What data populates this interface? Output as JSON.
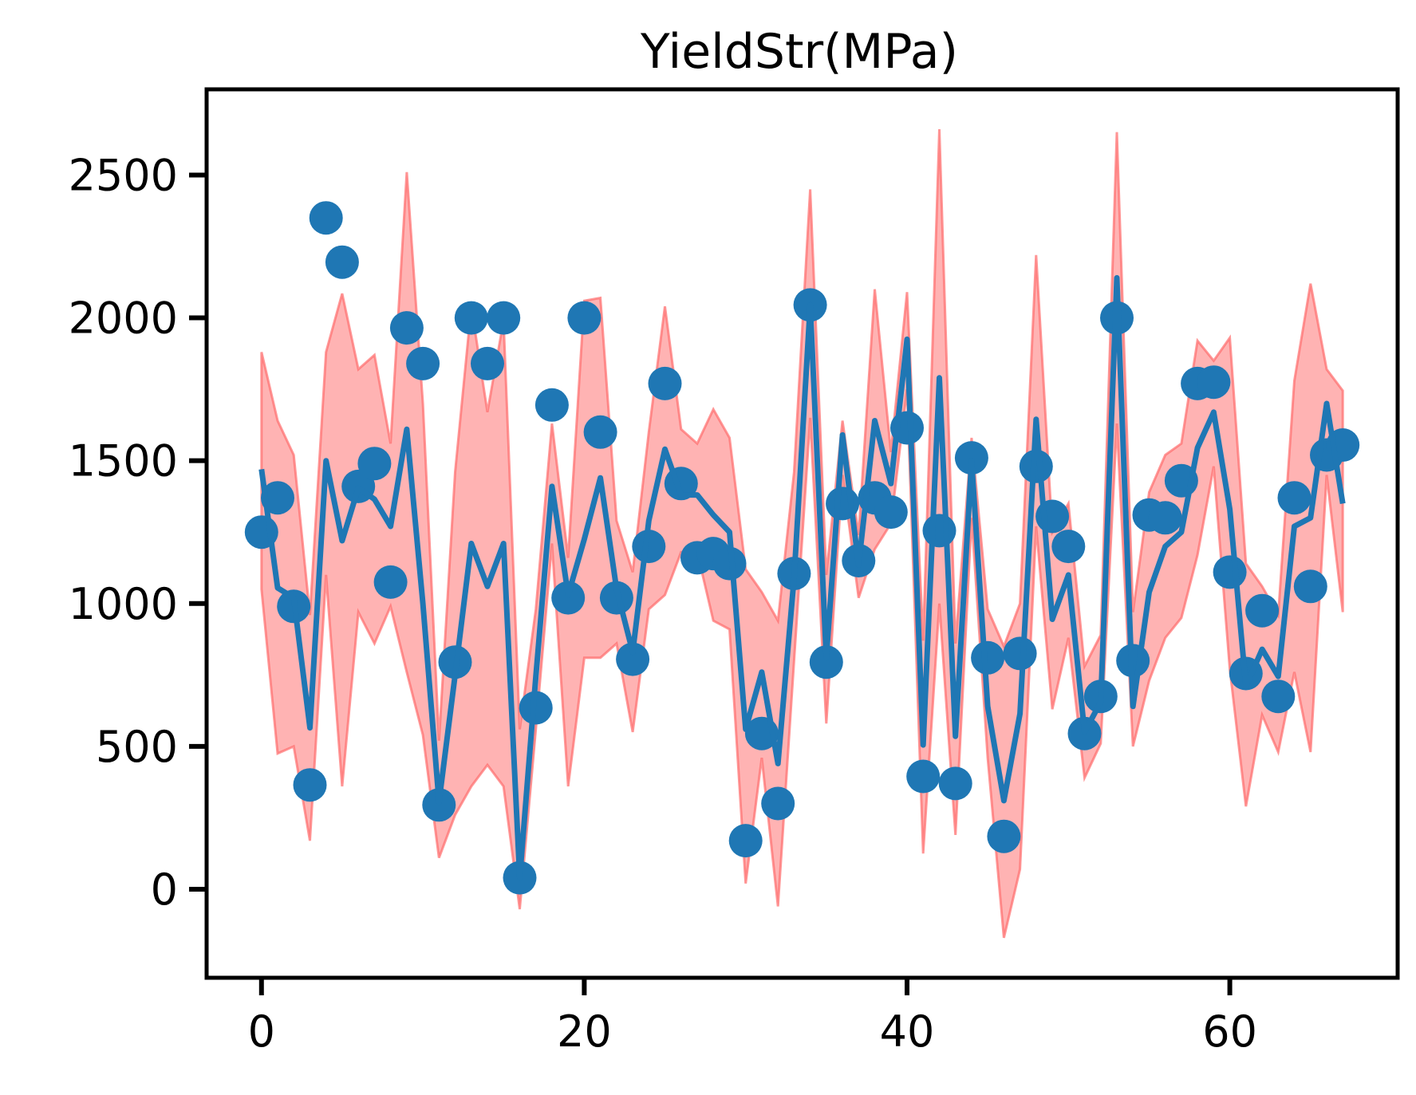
{
  "chart_data": {
    "type": "scatter",
    "title": "YieldStr(MPa)",
    "xlabel": "",
    "ylabel": "",
    "xlim": [
      -3.4,
      70.4
    ],
    "ylim": [
      -310,
      2800
    ],
    "x_ticks": [
      0,
      20,
      40,
      60
    ],
    "y_ticks": [
      0,
      500,
      1000,
      1500,
      2000,
      2500
    ],
    "grid": false,
    "legend": "none",
    "colors": {
      "points": "#1f77b4",
      "line": "#1f77b4",
      "band_fill": "#ff8080",
      "band_edge": "#ff6b6b",
      "axes": "#000000"
    },
    "series": [
      {
        "kind": "points",
        "values": [
          1250,
          1370,
          990,
          365,
          2350,
          2195,
          1410,
          1490,
          1075,
          1965,
          1840,
          295,
          795,
          2000,
          1840,
          2000,
          40,
          635,
          1695,
          1020,
          2000,
          1600,
          1020,
          805,
          1200,
          1770,
          1420,
          1160,
          1175,
          1140,
          170,
          545,
          300,
          1105,
          2045,
          795,
          1350,
          1150,
          1370,
          1320,
          1615,
          395,
          1255,
          370,
          1510,
          810,
          185,
          825,
          1480,
          1305,
          1200,
          545,
          675,
          2000,
          800,
          1310,
          1300,
          1430,
          1770,
          1775,
          1110,
          755,
          975,
          675,
          1370,
          1060,
          1520,
          1555
        ]
      },
      {
        "kind": "line",
        "values": [
          1470,
          1055,
          1020,
          565,
          1500,
          1220,
          1405,
          1365,
          1270,
          1610,
          1000,
          305,
          750,
          1210,
          1060,
          1210,
          40,
          745,
          1410,
          1030,
          1225,
          1440,
          1050,
          830,
          1290,
          1540,
          1380,
          1380,
          1310,
          1250,
          560,
          760,
          440,
          1090,
          2045,
          810,
          1590,
          1135,
          1640,
          1420,
          1925,
          505,
          1790,
          535,
          1500,
          640,
          310,
          615,
          1645,
          945,
          1100,
          550,
          655,
          2140,
          640,
          1040,
          1200,
          1250,
          1545,
          1670,
          1330,
          710,
          840,
          745,
          1270,
          1300,
          1700,
          1350
        ]
      },
      {
        "kind": "band",
        "upper": [
          1880,
          1640,
          1520,
          960,
          1880,
          2085,
          1820,
          1870,
          1560,
          2510,
          1700,
          520,
          1460,
          2040,
          1670,
          1990,
          560,
          980,
          1630,
          1160,
          2060,
          2070,
          1290,
          1110,
          1600,
          2040,
          1610,
          1560,
          1680,
          1580,
          1120,
          1040,
          940,
          1460,
          2450,
          1100,
          1640,
          1240,
          2100,
          1530,
          2090,
          870,
          2660,
          860,
          1580,
          980,
          850,
          1000,
          2220,
          1250,
          1350,
          780,
          890,
          2650,
          970,
          1390,
          1520,
          1560,
          1920,
          1850,
          1930,
          1140,
          1060,
          960,
          1780,
          2120,
          1820,
          1745
        ]
      },
      {
        "kind": "band",
        "lower": [
          1050,
          475,
          500,
          170,
          1100,
          360,
          970,
          860,
          990,
          760,
          540,
          110,
          260,
          360,
          435,
          360,
          -70,
          560,
          1210,
          360,
          810,
          810,
          860,
          550,
          980,
          1030,
          1180,
          1180,
          940,
          910,
          20,
          460,
          -60,
          800,
          1650,
          580,
          1450,
          1020,
          1190,
          1280,
          1750,
          125,
          1000,
          190,
          1300,
          460,
          -170,
          70,
          1270,
          630,
          880,
          390,
          510,
          1630,
          500,
          730,
          880,
          950,
          1170,
          1480,
          770,
          290,
          610,
          480,
          760,
          480,
          1450,
          970
        ]
      }
    ]
  }
}
